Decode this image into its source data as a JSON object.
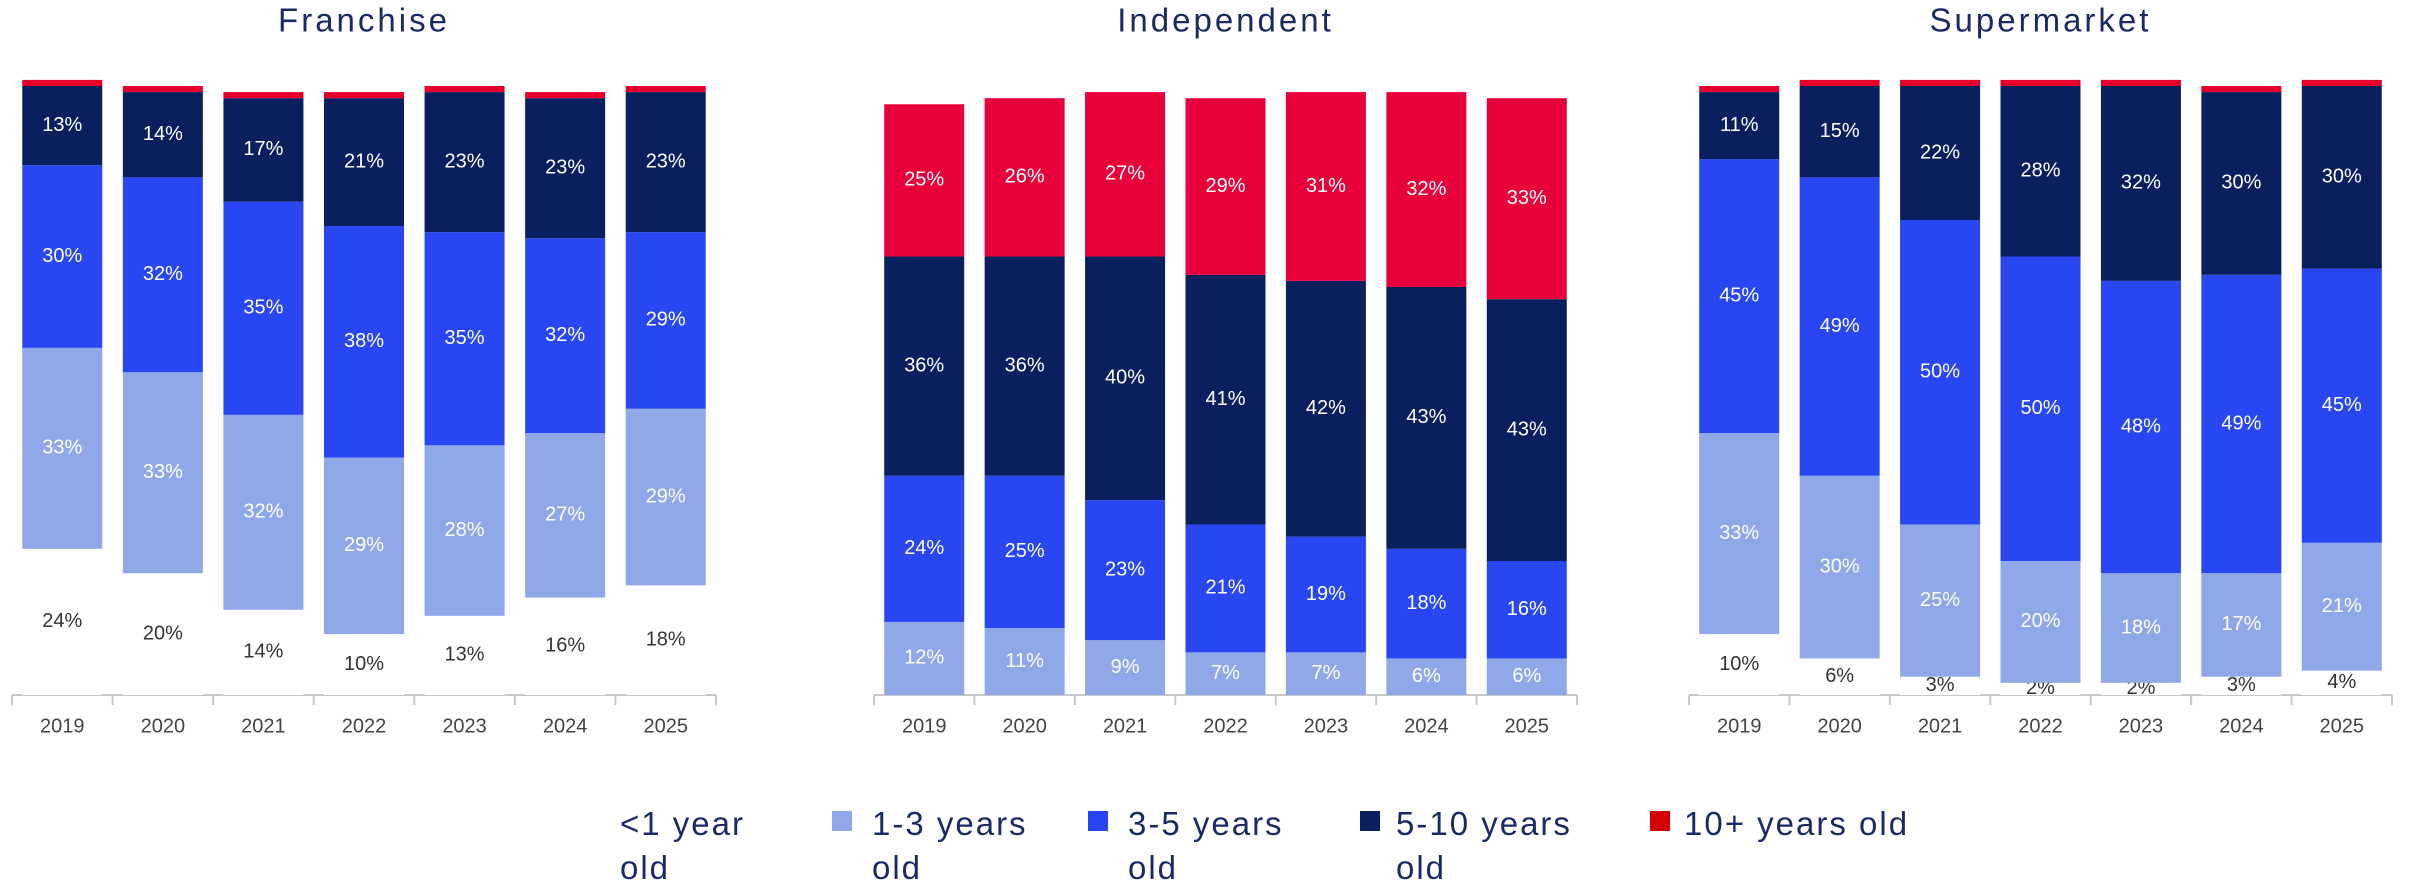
{
  "chart_data": [
    {
      "type": "stacked-bar",
      "title": "Franchise",
      "categories": [
        "2019",
        "2020",
        "2021",
        "2022",
        "2023",
        "2024",
        "2025"
      ],
      "ylim": [
        0,
        100
      ],
      "series": [
        {
          "name": "<1 year old",
          "color": "#ffffff",
          "values": [
            24,
            20,
            14,
            10,
            13,
            16,
            18
          ],
          "value_labels": [
            "24%",
            "20%",
            "14%",
            "10%",
            "13%",
            "16%",
            "18%"
          ]
        },
        {
          "name": "1-3 years old",
          "color": "#8fa8e8",
          "values": [
            33,
            33,
            32,
            29,
            28,
            27,
            29
          ],
          "value_labels": [
            "33%",
            "33%",
            "32%",
            "29%",
            "28%",
            "27%",
            "29%"
          ]
        },
        {
          "name": "3-5 years old",
          "color": "#2846f2",
          "values": [
            30,
            32,
            35,
            38,
            35,
            32,
            29
          ],
          "value_labels": [
            "30%",
            "32%",
            "35%",
            "38%",
            "35%",
            "32%",
            "29%"
          ]
        },
        {
          "name": "5-10 years old",
          "color": "#0a1f5e",
          "values": [
            13,
            14,
            17,
            21,
            23,
            23,
            23
          ],
          "value_labels": [
            "13%",
            "14%",
            "17%",
            "21%",
            "23%",
            "23%",
            "23%"
          ]
        },
        {
          "name": "10+ years old",
          "color": "#e4002b",
          "values": [
            1,
            1,
            1,
            1,
            1,
            1,
            1
          ],
          "value_labels": [
            null,
            null,
            null,
            null,
            null,
            null,
            null
          ]
        }
      ]
    },
    {
      "type": "stacked-bar",
      "title": "Independent",
      "categories": [
        "2019",
        "2020",
        "2021",
        "2022",
        "2023",
        "2024",
        "2025"
      ],
      "ylim": [
        0,
        100
      ],
      "series": [
        {
          "name": "<1 year old",
          "color": "#ffffff",
          "values": [
            0,
            0,
            0,
            0,
            0,
            0,
            0
          ],
          "value_labels": [
            null,
            null,
            null,
            null,
            null,
            null,
            null
          ]
        },
        {
          "name": "1-3 years old",
          "color": "#8fa8e8",
          "values": [
            12,
            11,
            9,
            7,
            7,
            6,
            6
          ],
          "value_labels": [
            "12%",
            "11%",
            "9%",
            "7%",
            "7%",
            "6%",
            "6%"
          ]
        },
        {
          "name": "3-5 years old",
          "color": "#2846f2",
          "values": [
            24,
            25,
            23,
            21,
            19,
            18,
            16
          ],
          "value_labels": [
            "24%",
            "25%",
            "23%",
            "21%",
            "19%",
            "18%",
            "16%"
          ]
        },
        {
          "name": "5-10 years old",
          "color": "#0a1f5e",
          "values": [
            36,
            36,
            40,
            41,
            42,
            43,
            43
          ],
          "value_labels": [
            "36%",
            "36%",
            "40%",
            "41%",
            "42%",
            "43%",
            "43%"
          ]
        },
        {
          "name": "10+ years old",
          "color": "#e8003a",
          "values": [
            25,
            26,
            27,
            29,
            31,
            32,
            33
          ],
          "value_labels": [
            "25%",
            "26%",
            "27%",
            "29%",
            "31%",
            "32%",
            "33%"
          ]
        }
      ]
    },
    {
      "type": "stacked-bar",
      "title": "Supermarket",
      "categories": [
        "2019",
        "2020",
        "2021",
        "2022",
        "2023",
        "2024",
        "2025"
      ],
      "ylim": [
        0,
        100
      ],
      "series": [
        {
          "name": "<1 year old",
          "color": "#ffffff",
          "values": [
            10,
            6,
            3,
            2,
            2,
            3,
            4
          ],
          "value_labels": [
            "10%",
            "6%",
            "3%",
            "2%",
            "2%",
            "3%",
            "4%"
          ]
        },
        {
          "name": "1-3 years old",
          "color": "#8fa8e8",
          "values": [
            33,
            30,
            25,
            20,
            18,
            17,
            21
          ],
          "value_labels": [
            "33%",
            "30%",
            "25%",
            "20%",
            "18%",
            "17%",
            "21%"
          ]
        },
        {
          "name": "3-5 years old",
          "color": "#2846f2",
          "values": [
            45,
            49,
            50,
            50,
            48,
            49,
            45
          ],
          "value_labels": [
            "45%",
            "49%",
            "50%",
            "50%",
            "48%",
            "49%",
            "45%"
          ]
        },
        {
          "name": "5-10 years old",
          "color": "#0a1f5e",
          "values": [
            11,
            15,
            22,
            28,
            32,
            30,
            30
          ],
          "value_labels": [
            "11%",
            "15%",
            "22%",
            "28%",
            "32%",
            "30%",
            "30%"
          ]
        },
        {
          "name": "10+ years old",
          "color": "#e4002b",
          "values": [
            1,
            1,
            1,
            1,
            1,
            1,
            1
          ],
          "value_labels": [
            null,
            null,
            null,
            null,
            null,
            null,
            null
          ]
        }
      ]
    }
  ]
}
